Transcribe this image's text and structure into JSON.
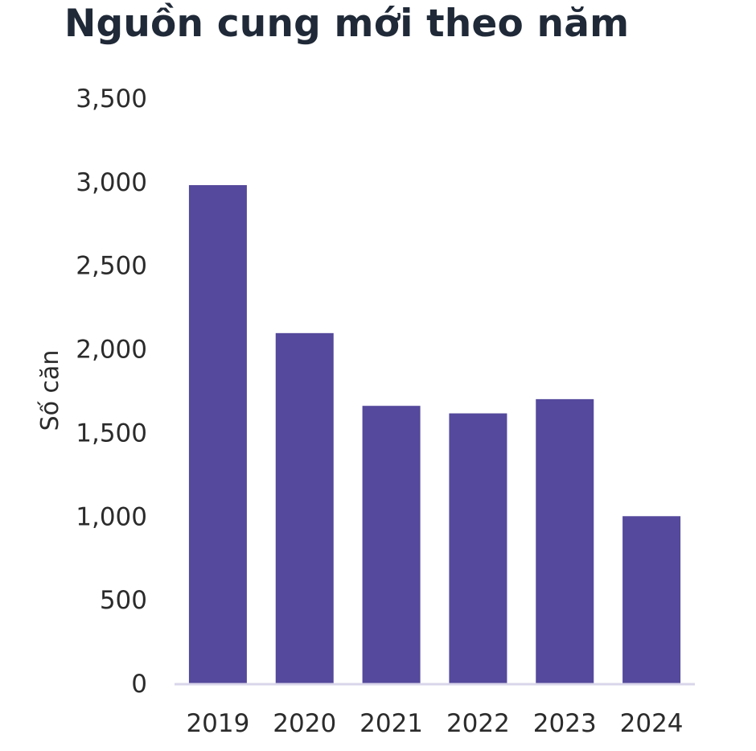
{
  "chart_data": {
    "type": "bar",
    "title": "Nguồn cung mới theo năm",
    "xlabel": "",
    "ylabel": "Số căn",
    "categories": [
      "2019",
      "2020",
      "2021",
      "2022",
      "2023",
      "2024"
    ],
    "values": [
      2980,
      2095,
      1660,
      1615,
      1700,
      1000
    ],
    "ylim": [
      0,
      3500
    ],
    "yticks": [
      0,
      500,
      1000,
      1500,
      2000,
      2500,
      3000,
      3500
    ],
    "ytick_labels": [
      "0",
      "500",
      "1,000",
      "1,500",
      "2,000",
      "2,500",
      "3,000",
      "3,500"
    ],
    "grid": false,
    "legend": "none",
    "bar_color": "#54499c",
    "axis_color": "#d9d6ea"
  }
}
